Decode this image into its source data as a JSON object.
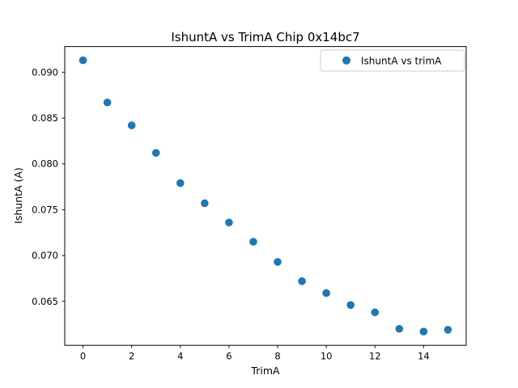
{
  "chart_data": {
    "type": "scatter",
    "title": "IshuntA vs TrimA Chip 0x14bc7",
    "xlabel": "TrimA",
    "ylabel": "IshuntA (A)",
    "legend": [
      "IshuntA vs trimA"
    ],
    "legend_position": "upper right",
    "x": [
      0,
      1,
      2,
      3,
      4,
      5,
      6,
      7,
      8,
      9,
      10,
      11,
      12,
      13,
      14,
      15
    ],
    "y": [
      0.0913,
      0.0867,
      0.0842,
      0.0812,
      0.0779,
      0.0757,
      0.0736,
      0.0715,
      0.0693,
      0.0672,
      0.0659,
      0.0646,
      0.0638,
      0.062,
      0.0617,
      0.0619
    ],
    "xlim": [
      -0.75,
      15.75
    ],
    "ylim": [
      0.0602,
      0.0928
    ],
    "xticks": [
      0,
      2,
      4,
      6,
      8,
      10,
      12,
      14
    ],
    "yticks": [
      0.065,
      0.07,
      0.075,
      0.08,
      0.085,
      0.09
    ],
    "ytick_decimals": 3,
    "grid": false,
    "marker_radius": 4.8,
    "colors": {
      "marker": "#1f77b4",
      "axis": "#000000",
      "legend_border": "#cccccc",
      "background": "#ffffff"
    }
  }
}
